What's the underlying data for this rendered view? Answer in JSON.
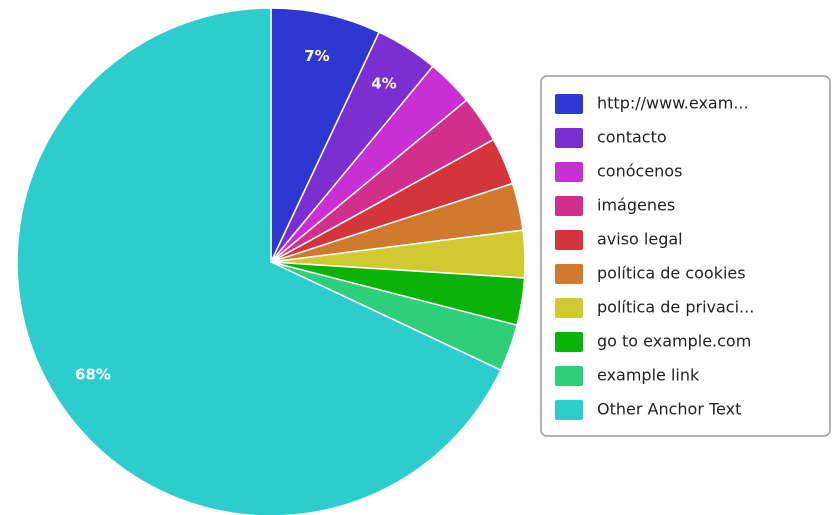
{
  "chart_data": {
    "type": "pie",
    "categories": [
      "http://www.exam...",
      "contacto",
      "conócenos",
      "imágenes",
      "aviso legal",
      "política de cookies",
      "política de privaci...",
      "go to example.com",
      "example link",
      "Other Anchor Text"
    ],
    "values": [
      7,
      4,
      3,
      3,
      3,
      3,
      3,
      3,
      3,
      68
    ],
    "value_labels": [
      "7%",
      "4%",
      null,
      null,
      null,
      null,
      null,
      null,
      null,
      "68%"
    ],
    "colors": [
      "#2e38d0",
      "#7b2fd1",
      "#c930d4",
      "#d02f8b",
      "#d2363a",
      "#cf7a2f",
      "#d1c931",
      "#0ab20a",
      "#2ecf78",
      "#2ecdcd"
    ],
    "legend": "right"
  }
}
